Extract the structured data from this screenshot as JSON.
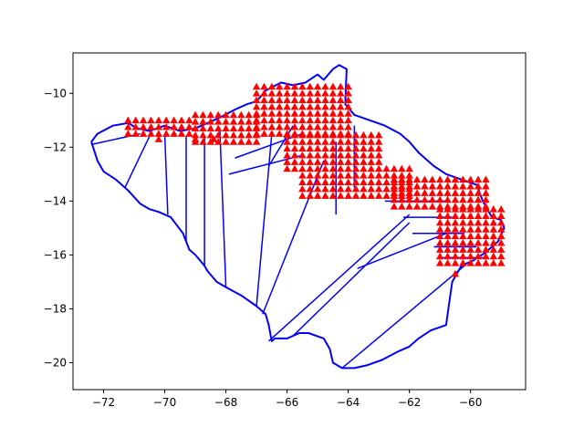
{
  "chart_data": {
    "type": "scatter",
    "title": "",
    "xlabel": "",
    "ylabel": "",
    "xlim": [
      -73.0,
      -58.2
    ],
    "ylim": [
      -21.0,
      -8.5
    ],
    "grid": false,
    "x_ticks": [
      -72,
      -70,
      -68,
      -66,
      -64,
      -62,
      -60
    ],
    "y_ticks": [
      -20,
      -18,
      -16,
      -14,
      -12,
      -10
    ],
    "x_tick_labels": [
      "−72",
      "−70",
      "−68",
      "−66",
      "−64",
      "−62",
      "−60"
    ],
    "y_tick_labels": [
      "−20",
      "−18",
      "−16",
      "−14",
      "−12",
      "−10"
    ],
    "colors": {
      "boundary": "#0000ff",
      "markers": "#ff0000",
      "axes": "#000000"
    },
    "marker_shape": "triangle-up",
    "boundary": [
      [
        -72.4,
        -11.8
      ],
      [
        -72.2,
        -11.5
      ],
      [
        -71.7,
        -11.2
      ],
      [
        -71.2,
        -11.1
      ],
      [
        -70.9,
        -11.3
      ],
      [
        -70.5,
        -11.4
      ],
      [
        -70.0,
        -11.2
      ],
      [
        -69.5,
        -11.4
      ],
      [
        -69.0,
        -11.3
      ],
      [
        -68.6,
        -11.1
      ],
      [
        -68.2,
        -10.9
      ],
      [
        -67.7,
        -10.6
      ],
      [
        -67.3,
        -10.4
      ],
      [
        -67.0,
        -10.3
      ],
      [
        -66.7,
        -9.9
      ],
      [
        -66.2,
        -9.6
      ],
      [
        -65.8,
        -9.7
      ],
      [
        -65.4,
        -9.6
      ],
      [
        -65.0,
        -9.3
      ],
      [
        -64.8,
        -9.5
      ],
      [
        -64.5,
        -9.1
      ],
      [
        -64.3,
        -8.95
      ],
      [
        -64.05,
        -9.1
      ],
      [
        -64.1,
        -10.4
      ],
      [
        -63.8,
        -10.8
      ],
      [
        -63.3,
        -11.0
      ],
      [
        -62.8,
        -11.2
      ],
      [
        -62.3,
        -11.5
      ],
      [
        -62.0,
        -11.8
      ],
      [
        -61.7,
        -12.2
      ],
      [
        -61.2,
        -12.7
      ],
      [
        -60.8,
        -13.0
      ],
      [
        -60.3,
        -13.2
      ],
      [
        -59.8,
        -13.4
      ],
      [
        -59.6,
        -14.0
      ],
      [
        -59.3,
        -14.6
      ],
      [
        -59.0,
        -14.7
      ],
      [
        -58.9,
        -15.0
      ],
      [
        -59.1,
        -15.5
      ],
      [
        -59.5,
        -15.9
      ],
      [
        -59.9,
        -16.2
      ],
      [
        -60.3,
        -16.4
      ],
      [
        -60.6,
        -17.0
      ],
      [
        -60.7,
        -17.8
      ],
      [
        -60.8,
        -18.6
      ],
      [
        -61.3,
        -18.8
      ],
      [
        -61.7,
        -19.1
      ],
      [
        -62.0,
        -19.4
      ],
      [
        -62.4,
        -19.6
      ],
      [
        -62.9,
        -19.9
      ],
      [
        -63.4,
        -20.1
      ],
      [
        -63.8,
        -20.2
      ],
      [
        -64.2,
        -20.2
      ],
      [
        -64.5,
        -20.0
      ],
      [
        -64.6,
        -19.5
      ],
      [
        -64.8,
        -19.1
      ],
      [
        -65.3,
        -18.9
      ],
      [
        -65.6,
        -18.9
      ],
      [
        -66.0,
        -19.1
      ],
      [
        -66.4,
        -19.1
      ],
      [
        -66.5,
        -19.2
      ],
      [
        -66.6,
        -18.6
      ],
      [
        -66.7,
        -18.2
      ],
      [
        -67.0,
        -17.9
      ],
      [
        -67.5,
        -17.5
      ],
      [
        -68.0,
        -17.2
      ],
      [
        -68.3,
        -17.0
      ],
      [
        -68.6,
        -16.6
      ],
      [
        -68.7,
        -16.4
      ],
      [
        -69.0,
        -16.0
      ],
      [
        -69.2,
        -15.8
      ],
      [
        -69.4,
        -15.2
      ],
      [
        -69.8,
        -14.6
      ],
      [
        -70.2,
        -14.4
      ],
      [
        -70.5,
        -14.3
      ],
      [
        -70.8,
        -14.1
      ],
      [
        -71.2,
        -13.6
      ],
      [
        -71.6,
        -13.2
      ],
      [
        -72.0,
        -12.9
      ],
      [
        -72.2,
        -12.5
      ],
      [
        -72.4,
        -11.8
      ]
    ],
    "connector_lines": [
      [
        [
          -72.4,
          -11.9
        ],
        [
          -70.8,
          -11.5
        ]
      ],
      [
        [
          -71.3,
          -13.5
        ],
        [
          -70.5,
          -11.6
        ]
      ],
      [
        [
          -69.9,
          -14.5
        ],
        [
          -70.0,
          -11.5
        ]
      ],
      [
        [
          -69.3,
          -15.5
        ],
        [
          -69.3,
          -11.6
        ]
      ],
      [
        [
          -68.7,
          -16.4
        ],
        [
          -68.7,
          -11.6
        ]
      ],
      [
        [
          -68.0,
          -17.2
        ],
        [
          -68.2,
          -11.3
        ]
      ],
      [
        [
          -67.0,
          -17.9
        ],
        [
          -66.5,
          -11.5
        ]
      ],
      [
        [
          -66.8,
          -18.2
        ],
        [
          -64.8,
          -12.5
        ]
      ],
      [
        [
          -66.6,
          -19.2
        ],
        [
          -62.0,
          -14.5
        ]
      ],
      [
        [
          -65.8,
          -19.0
        ],
        [
          -62.0,
          -14.8
        ]
      ],
      [
        [
          -64.2,
          -20.2
        ],
        [
          -60.2,
          -16.4
        ]
      ],
      [
        [
          -63.7,
          -16.5
        ],
        [
          -60.8,
          -15.2
        ]
      ],
      [
        [
          -64.4,
          -14.5
        ],
        [
          -64.4,
          -11.8
        ]
      ],
      [
        [
          -63.8,
          -13.5
        ],
        [
          -63.8,
          -11.2
        ]
      ],
      [
        [
          -62.8,
          -14.0
        ],
        [
          -60.8,
          -14.0
        ]
      ],
      [
        [
          -62.2,
          -14.6
        ],
        [
          -60.6,
          -14.6
        ]
      ],
      [
        [
          -61.9,
          -15.2
        ],
        [
          -60.2,
          -15.2
        ]
      ],
      [
        [
          -61.2,
          -15.7
        ],
        [
          -59.8,
          -15.7
        ]
      ],
      [
        [
          -61.0,
          -16.1
        ],
        [
          -59.6,
          -16.1
        ]
      ],
      [
        [
          -67.9,
          -13.0
        ],
        [
          -65.5,
          -12.3
        ]
      ],
      [
        [
          -67.7,
          -12.4
        ],
        [
          -65.5,
          -11.5
        ]
      ],
      [
        [
          -66.6,
          -12.7
        ],
        [
          -65.8,
          -11.2
        ]
      ]
    ],
    "marker_clusters": [
      {
        "x_range": [
          -71.2,
          -69.0
        ],
        "y_range": [
          -11.5,
          -11.0
        ],
        "step": 0.25
      },
      {
        "x_range": [
          -69.0,
          -67.0
        ],
        "y_range": [
          -11.8,
          -10.8
        ],
        "step": 0.25
      },
      {
        "x_range": [
          -67.0,
          -64.0
        ],
        "y_range": [
          -11.5,
          -9.6
        ],
        "step": 0.25
      },
      {
        "x_range": [
          -66.0,
          -63.0
        ],
        "y_range": [
          -12.8,
          -11.5
        ],
        "step": 0.25
      },
      {
        "x_range": [
          -65.5,
          -62.0
        ],
        "y_range": [
          -13.8,
          -12.8
        ],
        "step": 0.25
      },
      {
        "x_range": [
          -62.5,
          -59.5
        ],
        "y_range": [
          -14.2,
          -13.0
        ],
        "step": 0.25
      },
      {
        "x_range": [
          -61.0,
          -59.0
        ],
        "y_range": [
          -16.3,
          -14.2
        ],
        "step": 0.25
      }
    ],
    "marker_extra": [
      [
        -70.2,
        -11.7
      ],
      [
        -60.5,
        -16.7
      ],
      [
        -69.0,
        -11.7
      ],
      [
        -68.4,
        -11.7
      ]
    ]
  }
}
